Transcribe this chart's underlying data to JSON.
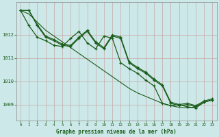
{
  "title": "Graphe pression niveau de la mer (hPa)",
  "bg_color": "#cce8e8",
  "line_color": "#1a5c1a",
  "grid_color_v": "#c8a8a8",
  "grid_color_h": "#c8a8a8",
  "ylim": [
    1008.3,
    1013.4
  ],
  "xlim": [
    -0.5,
    23.5
  ],
  "yticks": [
    1009,
    1010,
    1011,
    1012
  ],
  "xticks": [
    0,
    1,
    2,
    3,
    4,
    5,
    6,
    7,
    8,
    9,
    10,
    11,
    12,
    13,
    14,
    15,
    16,
    17,
    18,
    19,
    20,
    21,
    22,
    23
  ],
  "trend": [
    1013.05,
    1012.9,
    1012.55,
    1012.2,
    1011.95,
    1011.7,
    1011.45,
    1011.2,
    1010.95,
    1010.7,
    1010.45,
    1010.2,
    1009.95,
    1009.7,
    1009.5,
    1009.35,
    1009.2,
    1009.05,
    1008.95,
    1008.88,
    1008.85,
    1008.9,
    1009.1,
    1009.2
  ],
  "series": [
    [
      1013.05,
      1012.4,
      1011.9,
      1011.75,
      1011.55,
      1011.5,
      1011.85,
      1012.15,
      1011.65,
      1011.4,
      1011.95,
      1011.85,
      1010.8,
      1010.55,
      1010.35,
      1010.05,
      1009.8,
      1009.05,
      1008.95,
      1009.0,
      1008.9,
      1008.85,
      1009.1,
      1009.2
    ],
    [
      1013.05,
      1013.05,
      1012.4,
      1011.9,
      1011.75,
      1011.55,
      1011.5,
      1011.85,
      1012.15,
      1011.65,
      1011.4,
      1011.95,
      1011.85,
      1010.8,
      1010.55,
      1010.35,
      1010.05,
      1009.8,
      1009.05,
      1008.95,
      1009.0,
      1008.9,
      1009.1,
      1009.2
    ],
    [
      1013.05,
      1013.05,
      1012.45,
      1011.95,
      1011.8,
      1011.6,
      1011.55,
      1011.9,
      1012.2,
      1011.7,
      1011.45,
      1012.0,
      1011.9,
      1010.85,
      1010.6,
      1010.4,
      1010.1,
      1009.85,
      1009.1,
      1009.0,
      1009.05,
      1008.95,
      1009.15,
      1009.25
    ]
  ]
}
